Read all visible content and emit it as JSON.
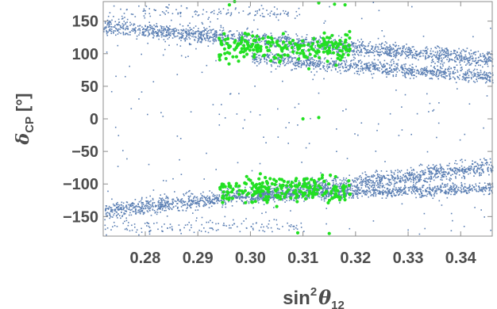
{
  "chart_data": {
    "type": "scatter",
    "title": "",
    "xlabel": {
      "prefix": "sin",
      "sup": "2",
      "symbol": "θ",
      "sub": "12"
    },
    "ylabel": {
      "symbol": "δ",
      "sub": "CP",
      "unit": "[°]"
    },
    "xlim": [
      0.272,
      0.346
    ],
    "ylim": [
      -180,
      180
    ],
    "x_ticks": [
      0.28,
      0.29,
      0.3,
      0.31,
      0.32,
      0.33,
      0.34
    ],
    "x_tick_labels": [
      "0.28",
      "0.29",
      "0.30",
      "0.31",
      "0.32",
      "0.33",
      "0.34"
    ],
    "y_ticks": [
      150,
      100,
      50,
      0,
      -50,
      -100,
      -150
    ],
    "y_tick_labels": [
      "150",
      "100",
      "50",
      "0",
      "−50",
      "−100",
      "−150"
    ],
    "frame": "box with inward ticks",
    "grid": false,
    "legend": "none",
    "series": [
      {
        "color": "#5b7fb3",
        "marker": "small square",
        "description_points": "dense band upper: from (0.272, 140) to (0.346, 95) plus lower branch near 70; band lower: from (0.272, -140) to (0.346, -70) plus branch near -105; sparse background",
        "bands": [
          {
            "x": [
              0.272,
              0.346
            ],
            "y_start": 142,
            "y_end": 92,
            "spread": 12
          },
          {
            "x": [
              0.3,
              0.346
            ],
            "y_start": 95,
            "y_end": 65,
            "spread": 10
          },
          {
            "x": [
              0.272,
              0.346
            ],
            "y_start": -142,
            "y_end": -72,
            "spread": 12
          },
          {
            "x": [
              0.3,
              0.346
            ],
            "y_start": -118,
            "y_end": -105,
            "spread": 9
          }
        ]
      },
      {
        "color": "#22e022",
        "marker": "small dot",
        "clusters": [
          {
            "x": [
              0.294,
              0.319
            ],
            "y_center": 110,
            "y_spread": 45
          },
          {
            "x": [
              0.294,
              0.319
            ],
            "y_center": -110,
            "y_spread": 45
          }
        ],
        "points": [
          [
            0.296,
            175
          ],
          [
            0.297,
            180
          ],
          [
            0.313,
            178
          ],
          [
            0.316,
            176
          ],
          [
            0.318,
            175
          ],
          [
            0.31,
            0
          ],
          [
            0.313,
            2
          ],
          [
            0.309,
            -175
          ],
          [
            0.315,
            -176
          ]
        ]
      }
    ]
  }
}
